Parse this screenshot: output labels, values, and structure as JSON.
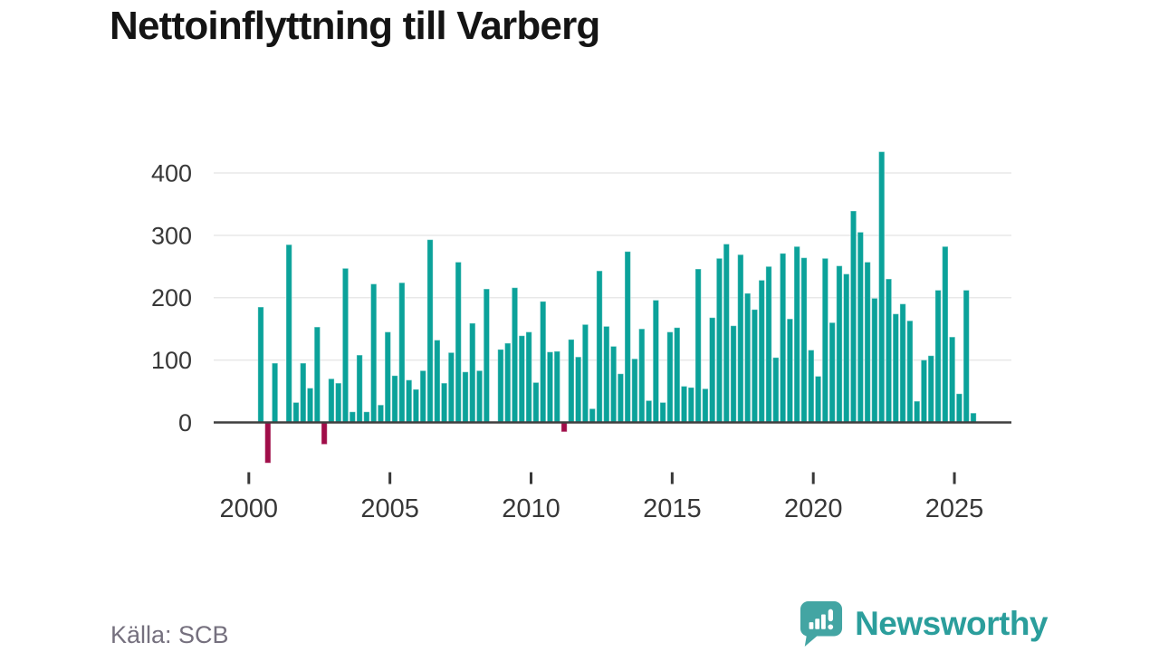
{
  "title": "Nettoinflyttning till Varberg",
  "source": "Källa: SCB",
  "brand": {
    "name": "Newsworthy",
    "icon": "speech-bubble-bar-chart-icon"
  },
  "colors": {
    "bar_positive": "#0BA29A",
    "bar_negative": "#A00D49",
    "grid_line": "#E8E8E8",
    "zero_line": "#3F3F3F",
    "axis_text": "#383838",
    "title_text": "#141414",
    "source_text": "#75707E",
    "brand_teal": "#2B9E9C",
    "logo_bubble": "#43A5A3"
  },
  "chart_data": {
    "type": "bar",
    "title": "Nettoinflyttning till Varberg",
    "period": "quarterly",
    "start_period": "2000-Q1",
    "end_period": "2025-Q2",
    "values": [
      185,
      -65,
      95,
      0,
      285,
      32,
      95,
      55,
      153,
      -35,
      70,
      63,
      247,
      17,
      108,
      17,
      222,
      28,
      145,
      75,
      224,
      68,
      53,
      83,
      293,
      132,
      63,
      112,
      257,
      81,
      159,
      83,
      214,
      0,
      117,
      127,
      216,
      139,
      145,
      64,
      194,
      113,
      114,
      -15,
      133,
      105,
      157,
      22,
      243,
      154,
      122,
      78,
      274,
      102,
      150,
      35,
      196,
      32,
      145,
      152,
      58,
      56,
      246,
      54,
      168,
      263,
      286,
      155,
      269,
      207,
      181,
      228,
      250,
      104,
      271,
      166,
      282,
      264,
      116,
      74,
      263,
      160,
      251,
      238,
      339,
      305,
      257,
      199,
      434,
      230,
      174,
      190,
      163,
      34,
      100,
      107,
      212,
      282,
      137,
      46,
      212,
      15
    ],
    "yticks": [
      0,
      100,
      200,
      300,
      400
    ],
    "xticks": [
      "2000",
      "2005",
      "2010",
      "2015",
      "2020",
      "2025"
    ],
    "ylim": [
      -95,
      450
    ],
    "grid": true,
    "legend": "none"
  }
}
